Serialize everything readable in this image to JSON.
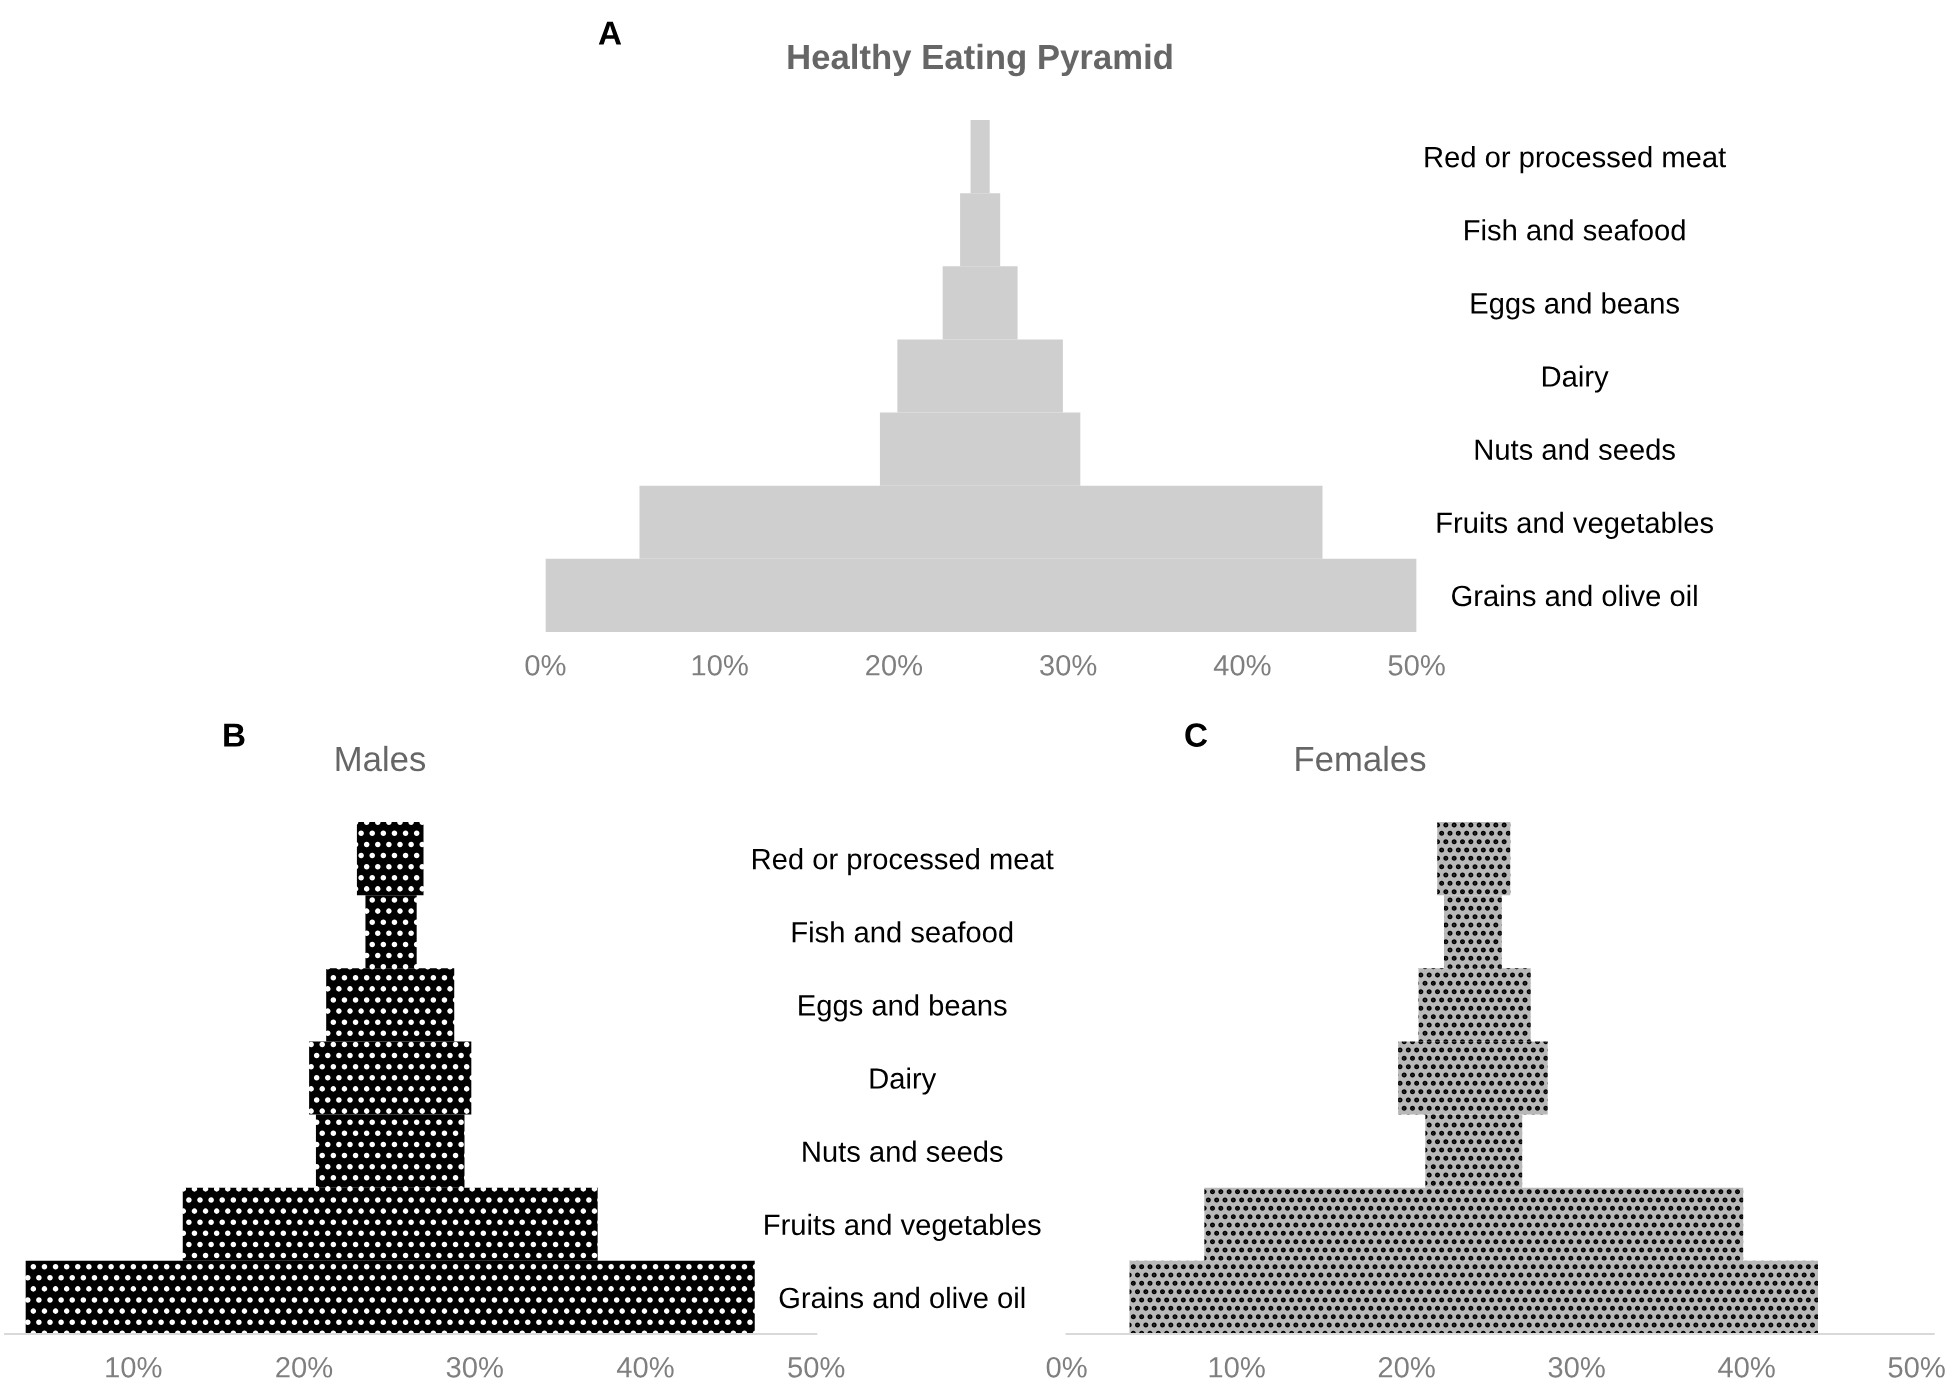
{
  "chart_data": [
    {
      "type": "bar",
      "orientation": "horizontal",
      "title": "Healthy Eating Pyramid",
      "annotations": [
        "A"
      ],
      "categories": [
        "Red or processed meat",
        "Fish and seafood",
        "Eggs and beans",
        "Dairy",
        "Nuts and seeds",
        "Fruits and vegetables",
        "Grains and olive oil"
      ],
      "base": [
        24.4,
        23.8,
        22.8,
        20.2,
        19.2,
        5.4,
        0
      ],
      "values": [
        1.1,
        2.3,
        4.3,
        9.5,
        11.5,
        39.2,
        50
      ],
      "color": "#d0cfd0",
      "xlim": [
        0,
        50
      ],
      "xticks": [
        {
          "value": 0,
          "label": "0%"
        },
        {
          "value": 10,
          "label": "10%"
        },
        {
          "value": 20,
          "label": "20%"
        },
        {
          "value": 30,
          "label": "30%"
        },
        {
          "value": 40,
          "label": "40%"
        },
        {
          "value": 50,
          "label": "50%"
        }
      ]
    },
    {
      "type": "bar",
      "orientation": "horizontal",
      "title": "Males",
      "annotations": [
        "B"
      ],
      "categories": [
        "Red or processed meat",
        "Fish and seafood",
        "Eggs and beans",
        "Dairy",
        "Nuts and seeds",
        "Fruits and vegetables",
        "Grains and olive oil"
      ],
      "base": [
        23.1,
        23.6,
        21.3,
        20.3,
        20.7,
        12.9,
        3.7
      ],
      "values": [
        3.9,
        3.0,
        7.5,
        9.5,
        8.7,
        24.3,
        42.7
      ],
      "color": "#000000",
      "xlim": [
        2.5,
        50
      ],
      "xticks": [
        {
          "value": 10,
          "label": "10%"
        },
        {
          "value": 20,
          "label": "20%"
        },
        {
          "value": 30,
          "label": "30%"
        },
        {
          "value": 40,
          "label": "40%"
        },
        {
          "value": 50,
          "label": "50%"
        }
      ]
    },
    {
      "type": "bar",
      "orientation": "horizontal",
      "title": "Females",
      "annotations": [
        "C"
      ],
      "categories": [
        null,
        null,
        null,
        null,
        null,
        null,
        null
      ],
      "base": [
        21.8,
        22.2,
        20.7,
        19.5,
        21.1,
        8.1,
        3.7
      ],
      "values": [
        4.3,
        3.4,
        6.6,
        8.8,
        5.7,
        31.7,
        40.5
      ],
      "color": "#b8b8b8",
      "xlim": [
        0,
        51
      ],
      "xticks": [
        {
          "value": 0,
          "label": "0%"
        },
        {
          "value": 10,
          "label": "10%"
        },
        {
          "value": 20,
          "label": "20%"
        },
        {
          "value": 30,
          "label": "30%"
        },
        {
          "value": 40,
          "label": "40%"
        },
        {
          "value": 50,
          "label": "50%"
        }
      ]
    }
  ]
}
